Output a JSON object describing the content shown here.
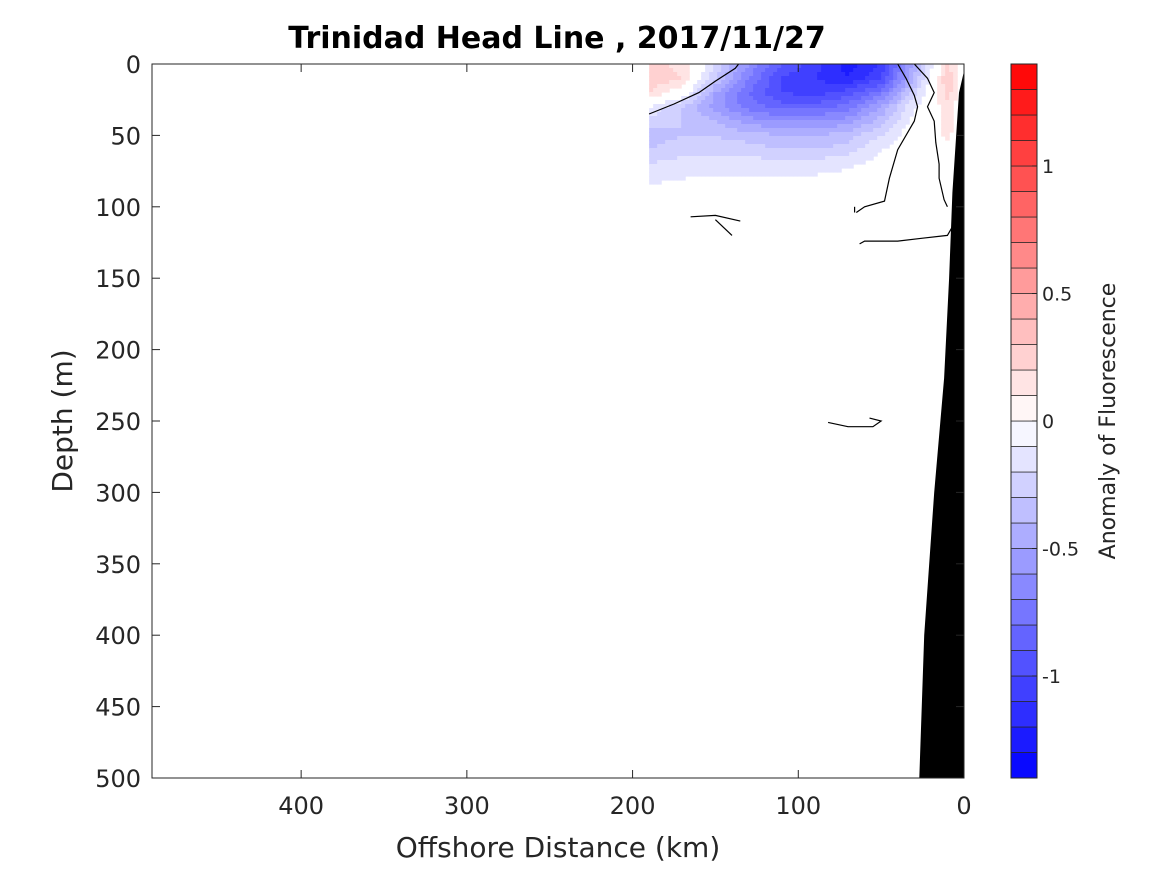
{
  "chart_data": {
    "type": "heatmap",
    "title": "Trinidad Head Line , 2017/11/27",
    "xlabel": "Offshore Distance (km)",
    "ylabel": "Depth (m)",
    "xlim": [
      490,
      0
    ],
    "ylim": [
      0,
      500
    ],
    "x_reversed": true,
    "y_reversed": true,
    "xticks": [
      400,
      300,
      200,
      100,
      0
    ],
    "yticks": [
      0,
      50,
      100,
      150,
      200,
      250,
      300,
      350,
      400,
      450,
      500
    ],
    "colorbar": {
      "label": "Anomaly of Fluorescence",
      "range": [
        -1.4,
        1.4
      ],
      "step": 0.1,
      "ticks": [
        1,
        0.5,
        0,
        -0.5,
        -1
      ],
      "tick_labels": [
        "1",
        "0.5",
        "0",
        "-0.5",
        "-1"
      ],
      "colormap": "blue-white-red",
      "negative_color": "#0000ff",
      "positive_color": "#ff0000"
    },
    "section_extent_km": [
      190,
      0
    ],
    "x_km": [
      190,
      170,
      150,
      130,
      110,
      90,
      70,
      50,
      30,
      10,
      0
    ],
    "depth_m": [
      0,
      10,
      20,
      30,
      40,
      50,
      60,
      70,
      80,
      90,
      100
    ],
    "values": [
      [
        0.25,
        0.15,
        -0.2,
        -0.6,
        -0.9,
        -1.05,
        -1.25,
        -1.1,
        -0.45,
        0.2,
        0.0
      ],
      [
        0.3,
        0.2,
        -0.3,
        -0.7,
        -1.0,
        -1.1,
        -1.2,
        -1.0,
        -0.4,
        0.3,
        0.0
      ],
      [
        0.2,
        0.0,
        -0.5,
        -0.8,
        -1.0,
        -1.05,
        -0.95,
        -0.75,
        -0.25,
        0.25,
        0.0
      ],
      [
        -0.1,
        -0.3,
        -0.55,
        -0.75,
        -0.85,
        -0.85,
        -0.75,
        -0.5,
        -0.1,
        0.15,
        0.0
      ],
      [
        -0.25,
        -0.3,
        -0.4,
        -0.55,
        -0.6,
        -0.6,
        -0.55,
        -0.35,
        -0.05,
        0.15,
        0.0
      ],
      [
        -0.35,
        -0.3,
        -0.3,
        -0.35,
        -0.4,
        -0.4,
        -0.35,
        -0.2,
        0.0,
        0.12,
        0.0
      ],
      [
        -0.3,
        -0.25,
        -0.25,
        -0.25,
        -0.3,
        -0.3,
        -0.25,
        -0.1,
        0.0,
        0.05,
        0.0
      ],
      [
        -0.2,
        -0.15,
        -0.15,
        -0.15,
        -0.15,
        -0.15,
        -0.12,
        -0.05,
        0.0,
        0.0,
        0.0
      ],
      [
        -0.12,
        -0.1,
        -0.08,
        -0.08,
        -0.08,
        -0.08,
        -0.06,
        0.0,
        0.0,
        0.0,
        0.0
      ],
      [
        -0.08,
        -0.05,
        -0.02,
        0.0,
        0.0,
        0.0,
        0.0,
        0.0,
        0.0,
        0.0,
        0.0
      ],
      [
        -0.05,
        0.0,
        0.0,
        0.0,
        0.0,
        0.0,
        0.0,
        0.0,
        0.0,
        0.0,
        0.0
      ]
    ],
    "zero_contours": [
      [
        [
          190,
          35
        ],
        [
          175,
          28
        ],
        [
          160,
          20
        ],
        [
          150,
          12
        ],
        [
          138,
          3
        ],
        [
          136,
          0
        ]
      ],
      [
        [
          30,
          0
        ],
        [
          22,
          10
        ],
        [
          18,
          20
        ],
        [
          22,
          30
        ],
        [
          18,
          40
        ],
        [
          17,
          55
        ],
        [
          15,
          70
        ],
        [
          15,
          80
        ],
        [
          12,
          95
        ],
        [
          10,
          100
        ]
      ],
      [
        [
          40,
          0
        ],
        [
          35,
          10
        ],
        [
          30,
          22
        ],
        [
          28,
          30
        ],
        [
          30,
          40
        ],
        [
          40,
          60
        ],
        [
          45,
          80
        ],
        [
          48,
          96
        ],
        [
          60,
          100
        ],
        [
          65,
          104
        ]
      ],
      [
        [
          66,
          104
        ],
        [
          66,
          100
        ]
      ],
      [
        [
          165,
          107
        ],
        [
          150,
          106
        ],
        [
          135,
          110
        ]
      ],
      [
        [
          150,
          109
        ],
        [
          140,
          120
        ]
      ],
      [
        [
          63,
          126
        ],
        [
          60,
          124
        ],
        [
          40,
          124
        ],
        [
          25,
          122
        ],
        [
          10,
          120
        ],
        [
          5,
          110
        ]
      ],
      [
        [
          82,
          251
        ],
        [
          70,
          254
        ],
        [
          55,
          254
        ],
        [
          50,
          250
        ],
        [
          57,
          248
        ]
      ]
    ],
    "bathymetry": [
      [
        0,
        5
      ],
      [
        3,
        20
      ],
      [
        7,
        90
      ],
      [
        9,
        150
      ],
      [
        12,
        220
      ],
      [
        18,
        300
      ],
      [
        24,
        400
      ],
      [
        27,
        500
      ],
      [
        0,
        500
      ]
    ]
  }
}
